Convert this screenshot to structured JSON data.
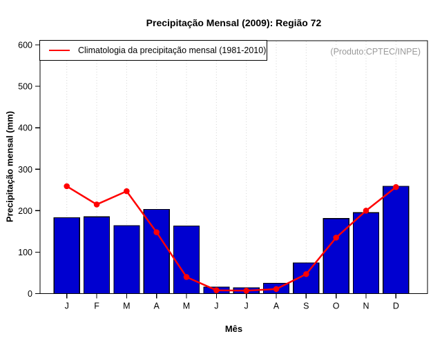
{
  "chart_data": {
    "type": "bar",
    "title": "Precipitação Mensal (2009): Região 72",
    "xlabel": "Mês",
    "ylabel": "Precipitação mensal (mm)",
    "categories": [
      "J",
      "F",
      "M",
      "A",
      "M",
      "J",
      "J",
      "A",
      "S",
      "O",
      "N",
      "D"
    ],
    "series": [
      {
        "name": "Precipitação mensal 2009",
        "type": "bar",
        "color": "#0000d0",
        "values": [
          183,
          185,
          164,
          203,
          163,
          16,
          14,
          25,
          74,
          181,
          195,
          259
        ]
      },
      {
        "name": "Climatologia da precipitação mensal (1981-2010)",
        "type": "line",
        "color": "#ff0000",
        "values": [
          259,
          215,
          247,
          148,
          40,
          8,
          7,
          11,
          47,
          135,
          200,
          257
        ]
      }
    ],
    "ylim": [
      0,
      600
    ],
    "yticks": [
      0,
      100,
      200,
      300,
      400,
      500,
      600
    ],
    "grid": "vertical-dotted",
    "grid_color": "#d4d4d4",
    "legend_position": "top-left",
    "legend_entries": [
      "Climatologia da precipitação mensal (1981-2010)"
    ],
    "annotation": "(Produto:CPTEC/INPE)"
  }
}
